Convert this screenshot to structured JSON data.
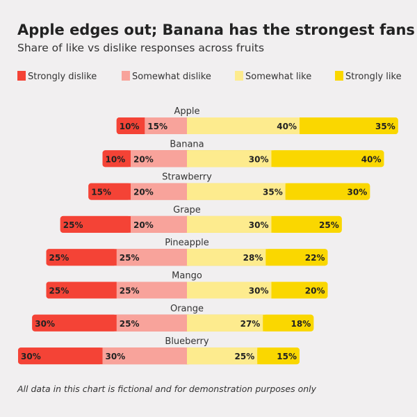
{
  "chart_data": {
    "type": "bar",
    "orientation": "horizontal",
    "stacking": "diverging",
    "title": "Apple edges out; Banana has the strongest fans",
    "subtitle": "Share of like vs dislike responses across fruits",
    "footnote": "All data in this chart is fictional and for demonstration purposes only",
    "categories": [
      "Apple",
      "Banana",
      "Strawberry",
      "Grape",
      "Pineapple",
      "Mango",
      "Orange",
      "Blueberry"
    ],
    "series": [
      {
        "name": "Strongly dislike",
        "color": "#f44336",
        "values": [
          10,
          10,
          15,
          25,
          25,
          25,
          30,
          30
        ]
      },
      {
        "name": "Somewhat dislike",
        "color": "#f8a39b",
        "values": [
          15,
          20,
          20,
          20,
          25,
          25,
          25,
          30
        ]
      },
      {
        "name": "Somewhat like",
        "color": "#fdeb8e",
        "values": [
          40,
          30,
          35,
          30,
          28,
          30,
          27,
          25
        ]
      },
      {
        "name": "Strongly like",
        "color": "#fad700",
        "values": [
          35,
          40,
          30,
          25,
          22,
          20,
          18,
          15
        ]
      }
    ],
    "value_suffix": "%",
    "legend_position": "top"
  }
}
